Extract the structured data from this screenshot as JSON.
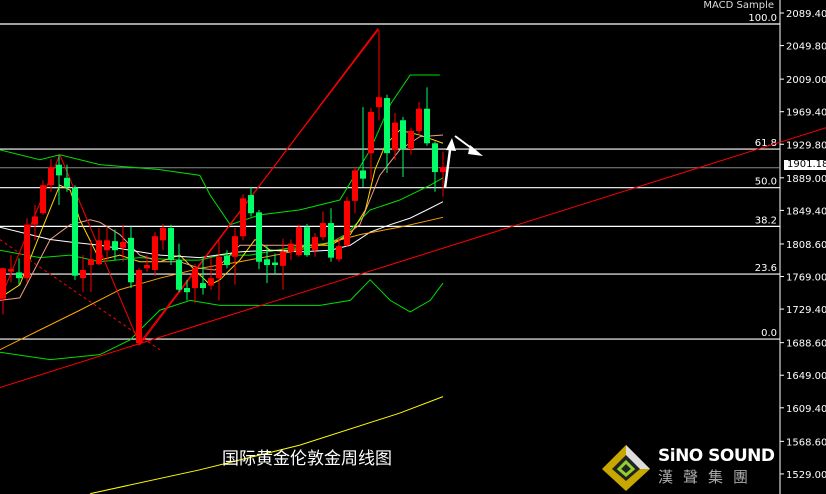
{
  "chart_data": {
    "type": "candlestick",
    "title": "国际黄金伦敦金周线图",
    "indicator_label": "MACD Sample",
    "current_price": "1901.18",
    "y_ticks": [
      "2089.40",
      "2049.80",
      "2009.00",
      "1969.40",
      "1929.80",
      "1889.00",
      "1849.40",
      "1808.60",
      "1769.00",
      "1729.40",
      "1688.60",
      "1649.00",
      "1609.40",
      "1568.60",
      "1529.00"
    ],
    "ylim": [
      1504.6,
      2105.2
    ],
    "colors": {
      "up": "#ff0000",
      "down": "#00ff66",
      "bollinger": "#00e000",
      "ma_fast": "#ffd700",
      "ma_mid": "#f4a080",
      "ma_slow": "#ffffff",
      "ma_long": "#ffa500",
      "ma_very_long": "#ffff00",
      "trend": "#ff0000",
      "fib": "#ffffff"
    },
    "candles": [
      [
        1742,
        1780,
        1723,
        1779
      ],
      [
        1775,
        1795,
        1762,
        1778
      ],
      [
        1774,
        1791,
        1759,
        1767
      ],
      [
        1767,
        1840,
        1762,
        1832
      ],
      [
        1832,
        1856,
        1813,
        1842
      ],
      [
        1846,
        1886,
        1844,
        1880
      ],
      [
        1880,
        1912,
        1872,
        1902
      ],
      [
        1905,
        1917,
        1856,
        1892
      ],
      [
        1889,
        1905,
        1872,
        1878
      ],
      [
        1877,
        1880,
        1765,
        1770
      ],
      [
        1767,
        1795,
        1750,
        1777
      ],
      [
        1783,
        1813,
        1750,
        1790
      ],
      [
        1784,
        1828,
        1783,
        1813
      ],
      [
        1801,
        1828,
        1787,
        1813
      ],
      [
        1812,
        1826,
        1789,
        1801
      ],
      [
        1804,
        1832,
        1787,
        1811
      ],
      [
        1816,
        1830,
        1755,
        1762
      ],
      [
        1688,
        1779,
        1686,
        1777
      ],
      [
        1779,
        1795,
        1775,
        1783
      ],
      [
        1777,
        1823,
        1770,
        1818
      ],
      [
        1813,
        1833,
        1801,
        1828
      ],
      [
        1828,
        1832,
        1783,
        1789
      ],
      [
        1789,
        1809,
        1750,
        1753
      ],
      [
        1755,
        1765,
        1740,
        1750
      ],
      [
        1755,
        1784,
        1737,
        1779
      ],
      [
        1761,
        1793,
        1747,
        1755
      ],
      [
        1758,
        1793,
        1753,
        1767
      ],
      [
        1767,
        1813,
        1740,
        1793
      ],
      [
        1794,
        1801,
        1779,
        1783
      ],
      [
        1793,
        1828,
        1759,
        1818
      ],
      [
        1818,
        1869,
        1813,
        1864
      ],
      [
        1868,
        1878,
        1842,
        1846
      ],
      [
        1847,
        1850,
        1778,
        1787
      ],
      [
        1790,
        1807,
        1761,
        1783
      ],
      [
        1786,
        1797,
        1771,
        1783
      ],
      [
        1782,
        1815,
        1753,
        1799
      ],
      [
        1799,
        1814,
        1789,
        1809
      ],
      [
        1795,
        1832,
        1793,
        1829
      ],
      [
        1829,
        1833,
        1793,
        1795
      ],
      [
        1801,
        1822,
        1793,
        1817
      ],
      [
        1817,
        1848,
        1813,
        1834
      ],
      [
        1834,
        1852,
        1787,
        1792
      ],
      [
        1790,
        1817,
        1787,
        1806
      ],
      [
        1807,
        1866,
        1805,
        1861
      ],
      [
        1861,
        1902,
        1846,
        1898
      ],
      [
        1898,
        1975,
        1878,
        1888
      ],
      [
        1919,
        1974,
        1886,
        1969
      ],
      [
        1975,
        2069,
        1959,
        1987
      ],
      [
        1986,
        1990,
        1895,
        1919
      ],
      [
        1923,
        1968,
        1911,
        1956
      ],
      [
        1959,
        1963,
        1890,
        1924
      ],
      [
        1924,
        1950,
        1917,
        1946
      ],
      [
        1946,
        1981,
        1941,
        1973
      ],
      [
        1973,
        1999,
        1928,
        1931
      ],
      [
        1931,
        1933,
        1872,
        1896
      ],
      [
        1896,
        1921,
        1866,
        1902
      ]
    ],
    "candle_format": [
      "open",
      "high",
      "low",
      "close"
    ],
    "lines": [
      {
        "kind": "bollinger",
        "color": "#00e000",
        "points": [
          [
            -0.4,
            1923
          ],
          [
            4.6,
            1911
          ],
          [
            7.1,
            1917
          ],
          [
            12.1,
            1905
          ],
          [
            15.9,
            1902
          ],
          [
            19.6,
            1899
          ],
          [
            24.6,
            1892
          ],
          [
            25.9,
            1868
          ],
          [
            28.4,
            1832
          ],
          [
            32.1,
            1844
          ],
          [
            37.1,
            1850
          ],
          [
            42.1,
            1862
          ],
          [
            45.9,
            1923
          ],
          [
            48.4,
            1978
          ],
          [
            50.9,
            2014
          ],
          [
            54.6,
            2014
          ]
        ]
      },
      {
        "kind": "bollinger",
        "color": "#00e000",
        "points": [
          [
            -0.4,
            1677
          ],
          [
            5.9,
            1668
          ],
          [
            12.1,
            1674
          ],
          [
            15.9,
            1692
          ],
          [
            17.1,
            1704
          ],
          [
            19.6,
            1728
          ],
          [
            23.4,
            1740
          ],
          [
            27.1,
            1734
          ],
          [
            30.9,
            1734
          ],
          [
            34.6,
            1734
          ],
          [
            39.6,
            1734
          ],
          [
            43.4,
            1740
          ],
          [
            45.9,
            1765
          ],
          [
            48.4,
            1740
          ],
          [
            50.9,
            1726
          ],
          [
            53.4,
            1740
          ],
          [
            55,
            1761
          ]
        ]
      },
      {
        "kind": "bollinger",
        "color": "#00e000",
        "points": [
          [
            -0.4,
            1801
          ],
          [
            4.6,
            1792
          ],
          [
            8.4,
            1795
          ],
          [
            12.1,
            1787
          ],
          [
            17.1,
            1792
          ],
          [
            22.1,
            1789
          ],
          [
            24.6,
            1789
          ],
          [
            27.1,
            1795
          ],
          [
            30.9,
            1795
          ],
          [
            35.9,
            1804
          ],
          [
            40.9,
            1810
          ],
          [
            42.8,
            1820
          ],
          [
            45.9,
            1850
          ],
          [
            49.6,
            1862
          ],
          [
            53.4,
            1880
          ],
          [
            55,
            1889
          ]
        ]
      },
      {
        "kind": "ma",
        "color": "#ffd700",
        "points": [
          [
            -0.4,
            1743
          ],
          [
            2.1,
            1759
          ],
          [
            4.6,
            1820
          ],
          [
            7.1,
            1880
          ],
          [
            8.4,
            1874
          ],
          [
            9.6,
            1838
          ],
          [
            12.1,
            1789
          ],
          [
            14.6,
            1795
          ],
          [
            17.1,
            1787
          ],
          [
            19.6,
            1787
          ],
          [
            22.1,
            1795
          ],
          [
            24.6,
            1771
          ],
          [
            25.9,
            1759
          ],
          [
            27.1,
            1765
          ],
          [
            29.6,
            1789
          ],
          [
            31.5,
            1814
          ],
          [
            33.4,
            1801
          ],
          [
            35.9,
            1801
          ],
          [
            38.4,
            1807
          ],
          [
            40.9,
            1807
          ],
          [
            43.4,
            1820
          ],
          [
            45.3,
            1850
          ],
          [
            46.5,
            1899
          ],
          [
            47.8,
            1929
          ],
          [
            49.6,
            1947
          ],
          [
            52.1,
            1941
          ],
          [
            55,
            1931
          ]
        ]
      },
      {
        "kind": "ma",
        "color": "#f4a080",
        "points": [
          [
            -0.4,
            1740
          ],
          [
            2.1,
            1743
          ],
          [
            5.9,
            1814
          ],
          [
            8.4,
            1832
          ],
          [
            10.9,
            1838
          ],
          [
            12.1,
            1835
          ],
          [
            14.6,
            1820
          ],
          [
            17.1,
            1795
          ],
          [
            19.6,
            1787
          ],
          [
            22.1,
            1787
          ],
          [
            24.6,
            1779
          ],
          [
            26.5,
            1777
          ],
          [
            29.6,
            1807
          ],
          [
            32.1,
            1807
          ],
          [
            35.9,
            1807
          ],
          [
            39.6,
            1807
          ],
          [
            42.1,
            1814
          ],
          [
            44.6,
            1832
          ],
          [
            47.1,
            1892
          ],
          [
            49.6,
            1923
          ],
          [
            52.1,
            1939
          ],
          [
            55,
            1941
          ]
        ]
      },
      {
        "kind": "ma",
        "color": "#ffffff",
        "points": [
          [
            -0.4,
            1829
          ],
          [
            3.4,
            1820
          ],
          [
            5.9,
            1814
          ],
          [
            8.4,
            1811
          ],
          [
            12.1,
            1807
          ],
          [
            15.9,
            1801
          ],
          [
            19.6,
            1795
          ],
          [
            24.6,
            1792
          ],
          [
            29.6,
            1799
          ],
          [
            33.4,
            1801
          ],
          [
            37.1,
            1799
          ],
          [
            40.9,
            1801
          ],
          [
            43.4,
            1807
          ],
          [
            45.9,
            1823
          ],
          [
            48.4,
            1832
          ],
          [
            50.9,
            1840
          ],
          [
            53.4,
            1852
          ],
          [
            55,
            1860
          ]
        ]
      },
      {
        "kind": "ma",
        "color": "#ffa500",
        "points": [
          [
            -0.4,
            1680
          ],
          [
            4.6,
            1704
          ],
          [
            9.6,
            1728
          ],
          [
            14.6,
            1753
          ],
          [
            19.6,
            1767
          ],
          [
            24.6,
            1779
          ],
          [
            29.6,
            1787
          ],
          [
            34.6,
            1796
          ],
          [
            39.6,
            1807
          ],
          [
            44.6,
            1820
          ],
          [
            49.6,
            1829
          ],
          [
            55,
            1841
          ]
        ]
      },
      {
        "kind": "ma",
        "color": "#ffff00",
        "points": [
          [
            10.9,
            1505
          ],
          [
            24.6,
            1534
          ],
          [
            37.1,
            1564
          ],
          [
            49.6,
            1603
          ],
          [
            55,
            1623
          ]
        ]
      },
      {
        "kind": "trendline",
        "color": "#ff0000",
        "points": [
          [
            -0.4,
            1634
          ],
          [
            102.9,
            1950
          ]
        ]
      },
      {
        "kind": "trendline",
        "color": "#ff0000",
        "points": [
          [
            16.9,
            1686
          ],
          [
            46.9,
            2069
          ]
        ]
      },
      {
        "kind": "zigzag",
        "color": "#ff0000",
        "points": [
          [
            -0.4,
            1740
          ],
          [
            7.1,
            1917
          ],
          [
            17.1,
            1686
          ],
          [
            46.9,
            2071
          ]
        ]
      },
      {
        "kind": "dashed",
        "color": "#ff0000",
        "points": [
          [
            -0.4,
            1814
          ],
          [
            19.6,
            1680
          ]
        ]
      }
    ],
    "fib_levels": [
      {
        "label": "100.0",
        "price": 2076
      },
      {
        "label": "61.8",
        "price": 1924
      },
      {
        "label": "50.0",
        "price": 1877
      },
      {
        "label": "38.2",
        "price": 1830
      },
      {
        "label": "23.6",
        "price": 1772
      },
      {
        "label": "0.0",
        "price": 1693
      }
    ]
  },
  "logo": {
    "en": "SiNO SOUND",
    "cn": "漢聲集團"
  }
}
